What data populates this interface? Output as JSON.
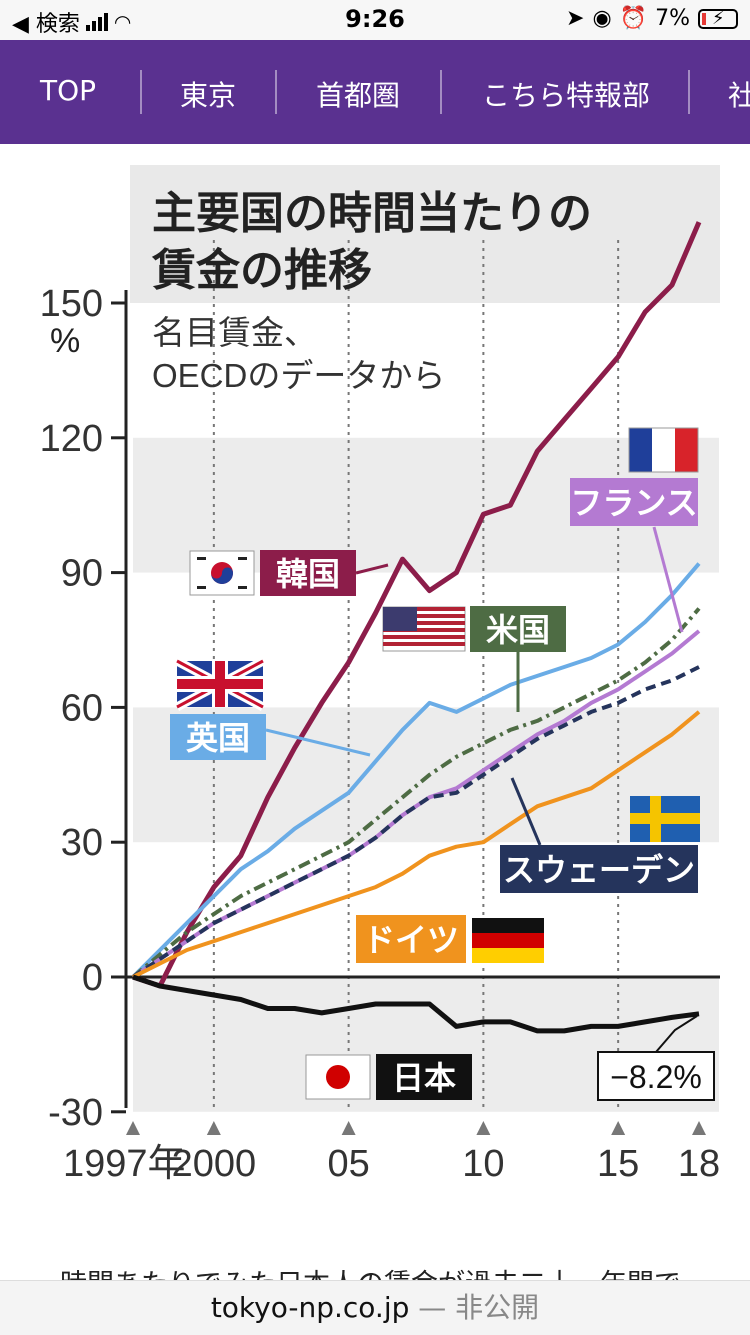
{
  "status_bar": {
    "back_label": "◀ 検索",
    "time": "9:26",
    "battery": "7%"
  },
  "nav": {
    "tabs": [
      "TOP",
      "東京",
      "首都圏",
      "こちら特報部",
      "社"
    ]
  },
  "chart_data": {
    "type": "line",
    "title_line1": "主要国の時間当たりの",
    "title_line2": "賃金の推移",
    "subtitle_line1": "名目賃金、",
    "subtitle_line2": "OECDのデータから",
    "y_unit": "%",
    "ylim": [
      -30,
      160
    ],
    "yticks": [
      "150",
      "120",
      "90",
      "60",
      "30",
      "0",
      "-30"
    ],
    "ytick_values": [
      150,
      120,
      90,
      60,
      30,
      0,
      -30
    ],
    "xlim": [
      1997,
      2018
    ],
    "xticks": [
      "1997年",
      "2000",
      "05",
      "10",
      "15",
      "18"
    ],
    "xtick_values": [
      1997,
      2000,
      2005,
      2010,
      2015,
      2018
    ],
    "grid": "dotted vertical at 2000, 2005, 2010, 2015; shaded horizontal bands",
    "x": [
      1997,
      1998,
      1999,
      2000,
      2001,
      2002,
      2003,
      2004,
      2005,
      2006,
      2007,
      2008,
      2009,
      2010,
      2011,
      2012,
      2013,
      2014,
      2015,
      2016,
      2017,
      2018
    ],
    "series": [
      {
        "name": "韓国",
        "color": "#8c1d4a",
        "style": "solid",
        "values": [
          0,
          -2,
          10,
          20,
          27,
          40,
          51,
          61,
          70,
          81,
          93,
          86,
          90,
          103,
          105,
          117,
          124,
          131,
          138,
          148,
          154,
          168
        ]
      },
      {
        "name": "英国",
        "color": "#6aace6",
        "style": "solid",
        "values": [
          0,
          6,
          12,
          18,
          24,
          28,
          33,
          37,
          41,
          48,
          55,
          61,
          59,
          62,
          65,
          67,
          69,
          71,
          74,
          79,
          85,
          92
        ]
      },
      {
        "name": "米国",
        "color": "#4e6c44",
        "style": "dashdot",
        "values": [
          0,
          5,
          10,
          14,
          18,
          21,
          24,
          27,
          30,
          35,
          40,
          45,
          49,
          52,
          55,
          57,
          60,
          63,
          66,
          70,
          75,
          82
        ]
      },
      {
        "name": "フランス",
        "color": "#b47ad2",
        "style": "solid",
        "values": [
          0,
          4,
          8,
          12,
          15,
          18,
          21,
          24,
          27,
          31,
          36,
          40,
          42,
          46,
          50,
          54,
          57,
          61,
          64,
          68,
          72,
          77
        ]
      },
      {
        "name": "スウェーデン",
        "color": "#25345c",
        "style": "dashed",
        "values": [
          0,
          4,
          8,
          12,
          15,
          18,
          21,
          24,
          27,
          31,
          36,
          40,
          41,
          45,
          49,
          53,
          56,
          59,
          61,
          64,
          66,
          69
        ]
      },
      {
        "name": "ドイツ",
        "color": "#f0931e",
        "style": "solid",
        "values": [
          0,
          3,
          6,
          8,
          10,
          12,
          14,
          16,
          18,
          20,
          23,
          27,
          29,
          30,
          34,
          38,
          40,
          42,
          46,
          50,
          54,
          59
        ]
      },
      {
        "name": "日本",
        "color": "#111111",
        "style": "solid",
        "values": [
          0,
          -2,
          -3,
          -4,
          -5,
          -7,
          -7,
          -8,
          -7,
          -6,
          -6,
          -6,
          -11,
          -10,
          -10,
          -12,
          -12,
          -11,
          -11,
          -10,
          -9,
          -8.2
        ]
      }
    ],
    "end_label": "−8.2%"
  },
  "article": {
    "snippet": "時間あたりでみた日本人の賃金が過去二十一年間で"
  },
  "url_bar": {
    "domain": "tokyo-np.co.jp",
    "suffix": " — 非公開"
  }
}
